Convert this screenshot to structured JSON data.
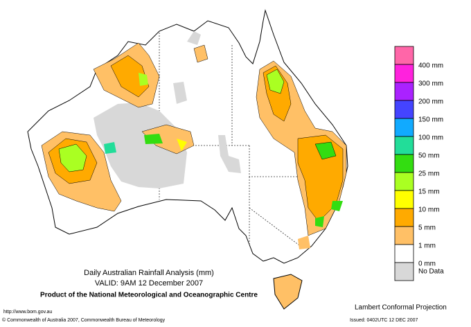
{
  "title": "Daily Australian Rainfall Analysis (mm)",
  "valid": "VALID: 9AM 12 December 2007",
  "product": "Product of the National Meteorological and Oceanographic Centre",
  "url": "http://www.bom.gov.au",
  "copyright": "© Commonwealth of Australia 2007, Commonwealth Bureau of Meteorology",
  "projection": "Lambert Conformal Projection",
  "issued": "Issued: 0402UTC 12 DEC 2007",
  "legend": {
    "colors": [
      "#ff66a8",
      "#ff22dd",
      "#aa22ff",
      "#4444ff",
      "#11aaff",
      "#22dd99",
      "#33dd11",
      "#aaff22",
      "#ffff00",
      "#ffaa00",
      "#ffc066",
      "#ffffff",
      "#d8d8d8"
    ],
    "labels": [
      "400 mm",
      "300 mm",
      "200 mm",
      "150 mm",
      "100 mm",
      "50 mm",
      "25 mm",
      "15 mm",
      "10 mm",
      "5 mm",
      "1 mm",
      "0 mm",
      "No Data"
    ]
  }
}
